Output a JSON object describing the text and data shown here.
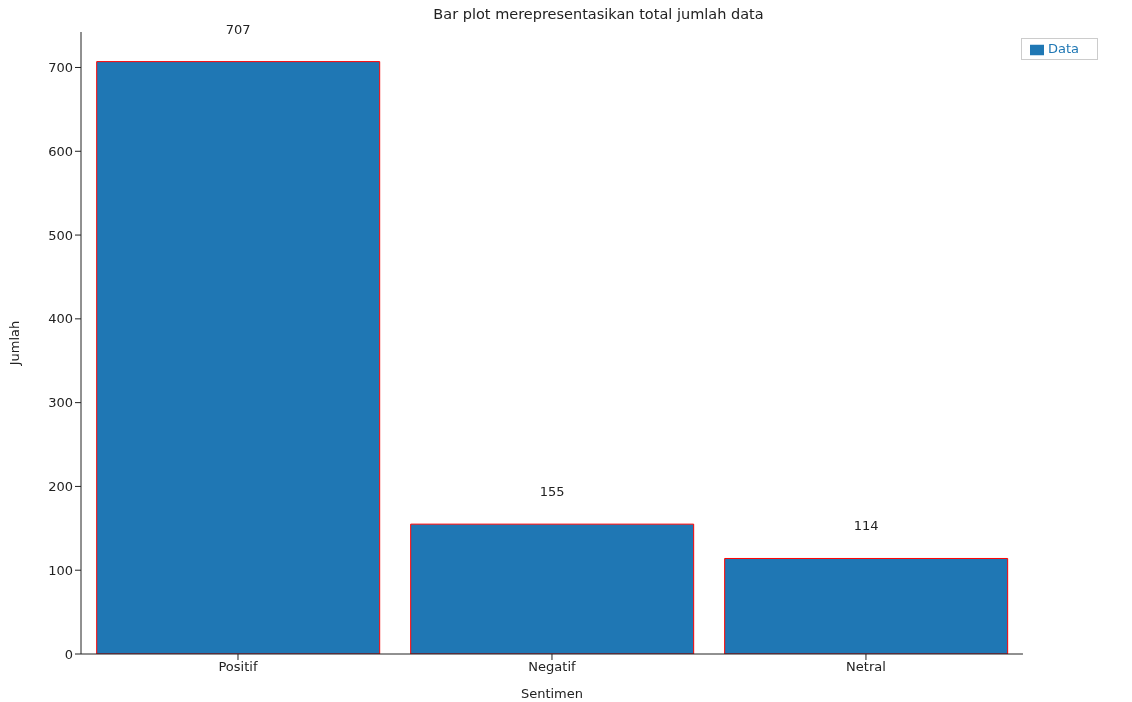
{
  "chart_data": {
    "type": "bar",
    "title": "Bar plot merepresentasikan total jumlah data",
    "xlabel": "Sentimen",
    "ylabel": "Jumlah",
    "categories": [
      "Positif",
      "Negatif",
      "Netral"
    ],
    "series": [
      {
        "name": "Data",
        "color": "#1f77b4",
        "values": [
          707,
          155,
          114
        ]
      }
    ],
    "ylim": [
      0,
      742.35
    ],
    "yticks": [
      0,
      100,
      200,
      300,
      400,
      500,
      600,
      700
    ],
    "data_labels": true,
    "legend": "top right",
    "grid": false
  }
}
